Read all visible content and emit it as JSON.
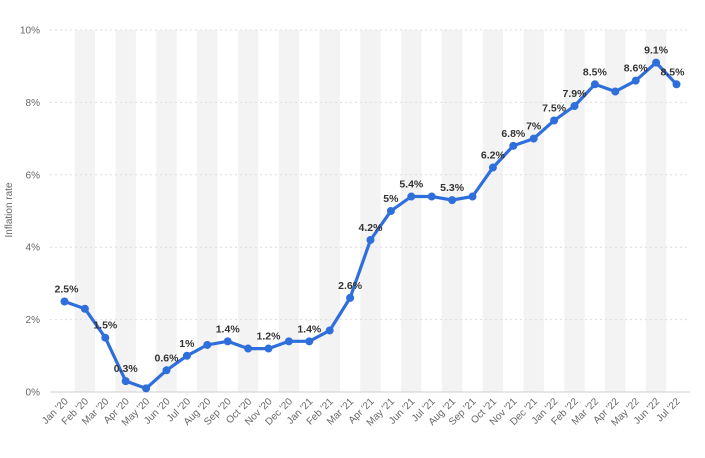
{
  "chart_data": {
    "type": "line",
    "title": "",
    "xlabel": "",
    "ylabel": "Inflation rate",
    "ylim": [
      0,
      10
    ],
    "y_ticks": [
      "0%",
      "2%",
      "4%",
      "6%",
      "8%",
      "10%"
    ],
    "grid": "horizontal dashed",
    "line_color": "#2f6fdb",
    "band_color": "#f3f3f3",
    "categories": [
      "Jan '20",
      "Feb '20",
      "Mar '20",
      "Apr '20",
      "May '20",
      "Jun '20",
      "Jul '20",
      "Aug '20",
      "Sep '20",
      "Oct '20",
      "Nov '20",
      "Dec '20",
      "Jan '21",
      "Feb '21",
      "Mar '21",
      "Apr '21",
      "May '21",
      "Jun '21",
      "Jul '21",
      "Aug '21",
      "Sep '21",
      "Oct '21",
      "Nov '21",
      "Dec '21",
      "Jan '22",
      "Feb '22",
      "Mar '22",
      "Apr '22",
      "May '22",
      "Jun '22",
      "Jul '22"
    ],
    "series": [
      {
        "values": [
          2.5,
          2.3,
          1.5,
          0.3,
          0.1,
          0.6,
          1.0,
          1.3,
          1.4,
          1.2,
          1.2,
          1.4,
          1.4,
          1.7,
          2.6,
          4.2,
          5.0,
          5.4,
          5.4,
          5.3,
          5.4,
          6.2,
          6.8,
          7.0,
          7.5,
          7.9,
          8.5,
          8.3,
          8.6,
          9.1,
          8.5
        ]
      }
    ],
    "data_labels": [
      {
        "index": 0,
        "text": "2.5%"
      },
      {
        "index": 2,
        "text": "1.5%"
      },
      {
        "index": 3,
        "text": "0.3%"
      },
      {
        "index": 5,
        "text": "0.6%"
      },
      {
        "index": 6,
        "text": "1%"
      },
      {
        "index": 8,
        "text": "1.4%"
      },
      {
        "index": 10,
        "text": "1.2%"
      },
      {
        "index": 12,
        "text": "1.4%"
      },
      {
        "index": 14,
        "text": "2.6%"
      },
      {
        "index": 15,
        "text": "4.2%"
      },
      {
        "index": 16,
        "text": "5%"
      },
      {
        "index": 17,
        "text": "5.4%"
      },
      {
        "index": 19,
        "text": "5.3%"
      },
      {
        "index": 21,
        "text": "6.2%"
      },
      {
        "index": 22,
        "text": "6.8%"
      },
      {
        "index": 23,
        "text": "7%"
      },
      {
        "index": 24,
        "text": "7.5%"
      },
      {
        "index": 25,
        "text": "7.9%"
      },
      {
        "index": 26,
        "text": "8.5%"
      },
      {
        "index": 28,
        "text": "8.6%"
      },
      {
        "index": 29,
        "text": "9.1%"
      },
      {
        "index": 30,
        "text": "8.5%"
      }
    ]
  }
}
